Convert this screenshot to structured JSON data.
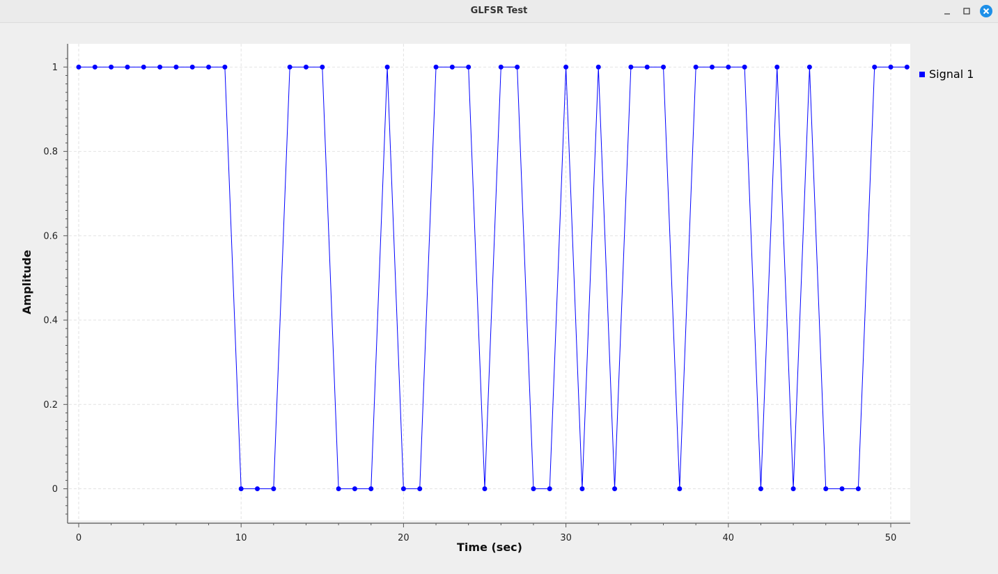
{
  "window": {
    "title": "GLFSR Test",
    "buttons": [
      "minimize-icon",
      "maximize-icon",
      "close-icon"
    ],
    "close_color": "#1d8fe8"
  },
  "chart_data": {
    "type": "line",
    "title": "",
    "xlabel": "Time (sec)",
    "ylabel": "Amplitude",
    "xlim": [
      -0.6,
      51.2
    ],
    "ylim": [
      -0.075,
      1.055
    ],
    "x_ticks": [
      0,
      10,
      20,
      30,
      40,
      50
    ],
    "y_ticks": [
      0,
      0.2,
      0.4,
      0.6,
      0.8,
      1
    ],
    "y_tick_labels": [
      "0",
      "0.2",
      "0.4",
      "0.6",
      "0.8",
      "1"
    ],
    "grid": true,
    "legend_position": "right-top",
    "series": [
      {
        "name": "Signal 1",
        "color": "#0000ff",
        "marker": "circle",
        "x": [
          0,
          1,
          2,
          3,
          4,
          5,
          6,
          7,
          8,
          9,
          10,
          11,
          12,
          13,
          14,
          15,
          16,
          17,
          18,
          19,
          20,
          21,
          22,
          23,
          24,
          25,
          26,
          27,
          28,
          29,
          30,
          31,
          32,
          33,
          34,
          35,
          36,
          37,
          38,
          39,
          40,
          41,
          42,
          43,
          44,
          45,
          46,
          47,
          48,
          49,
          50,
          51
        ],
        "values": [
          1,
          1,
          1,
          1,
          1,
          1,
          1,
          1,
          1,
          1,
          0,
          0,
          0,
          1,
          1,
          1,
          0,
          0,
          0,
          1,
          0,
          0,
          1,
          1,
          1,
          0,
          1,
          1,
          0,
          0,
          1,
          0,
          1,
          0,
          1,
          1,
          1,
          0,
          1,
          1,
          1,
          1,
          0,
          1,
          0,
          1,
          0,
          0,
          0,
          1,
          1,
          1
        ]
      }
    ]
  }
}
